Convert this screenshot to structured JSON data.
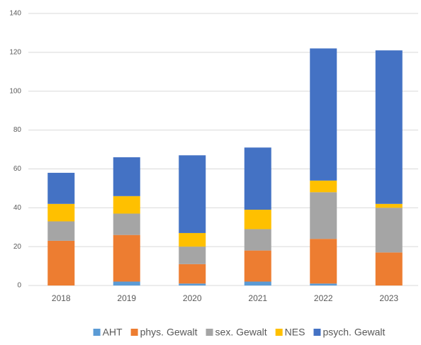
{
  "chart_data": {
    "type": "stacked_bar",
    "categories": [
      "2018",
      "2019",
      "2020",
      "2021",
      "2022",
      "2023"
    ],
    "series": [
      {
        "name": "AHT",
        "color": "#5b9bd5",
        "values": [
          0,
          2,
          1,
          2,
          1,
          0
        ]
      },
      {
        "name": "phys. Gewalt",
        "color": "#ed7d31",
        "values": [
          23,
          24,
          10,
          16,
          23,
          17
        ]
      },
      {
        "name": "sex. Gewalt",
        "color": "#a5a5a5",
        "values": [
          10,
          11,
          9,
          11,
          24,
          23
        ]
      },
      {
        "name": "NES",
        "color": "#ffc000",
        "values": [
          9,
          9,
          7,
          10,
          6,
          2
        ]
      },
      {
        "name": "psych. Gewalt",
        "color": "#4472c4",
        "values": [
          16,
          20,
          40,
          32,
          68,
          79
        ]
      }
    ],
    "ylim": [
      0,
      140
    ],
    "yticks": [
      0,
      20,
      40,
      60,
      80,
      100,
      120,
      140
    ],
    "grid": true,
    "legend": "bottom"
  }
}
